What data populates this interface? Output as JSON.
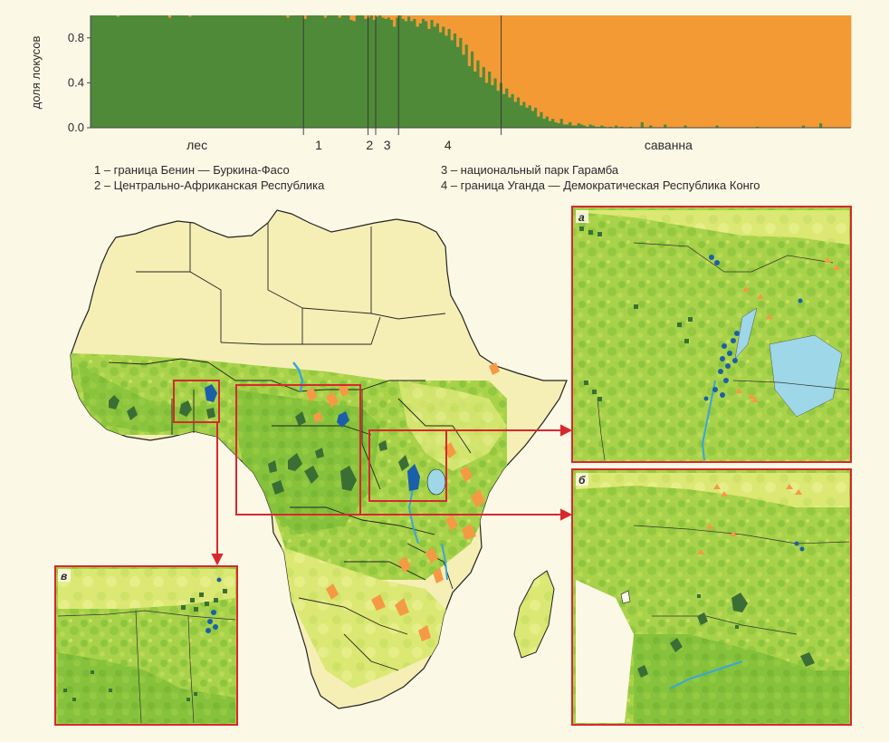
{
  "colors": {
    "forest": "#4f8a39",
    "savanna": "#f39a34",
    "background": "#fbf8e6",
    "land_light": "#f6efb5",
    "vegetation_light": "#d9e872",
    "vegetation_dense": "#8cc63e",
    "water": "#9ed7e8",
    "river": "#3aa6d8",
    "highlight_frame": "#d7282f",
    "marker_blue": "#1a5fa8",
    "marker_dark_green": "#3b6e35",
    "marker_orange": "#f49a45"
  },
  "chart_data": {
    "type": "bar",
    "subtype": "stacked admixture (STRUCTURE) plot",
    "ylabel": "доля локусов",
    "ylim": [
      0,
      1
    ],
    "yticks": [
      "0.0",
      "0.4",
      "0.8"
    ],
    "series": [
      {
        "name": "лес"
      },
      {
        "name": "саванна"
      }
    ],
    "values": [
      1,
      1,
      1,
      1,
      1,
      1,
      1,
      1,
      1,
      0.99,
      1,
      1,
      1,
      1,
      1,
      1,
      1,
      1,
      1,
      1,
      1,
      1,
      1,
      1,
      1,
      1,
      1,
      0.98,
      1,
      1,
      1,
      1,
      1,
      1,
      0.99,
      1,
      1,
      1,
      1,
      1,
      1,
      1,
      1,
      1,
      1,
      1,
      1,
      1,
      1,
      1,
      1,
      1,
      1,
      1,
      1,
      1,
      1,
      1,
      1,
      1,
      1,
      1,
      1,
      1,
      1,
      1,
      1,
      1,
      0.98,
      1,
      1,
      1,
      1,
      1,
      0.97,
      1,
      1,
      1,
      1,
      1,
      1,
      0.98,
      1,
      1,
      1,
      1,
      0.98,
      1,
      1,
      1,
      0.96,
      0.95,
      1,
      1,
      1,
      0.97,
      0.98,
      1,
      0.96,
      0.99,
      1,
      0.98,
      0.97,
      0.98,
      0.96,
      0.9,
      0.98,
      1,
      0.97,
      0.95,
      0.99,
      0.95,
      0.97,
      0.9,
      0.93,
      0.97,
      0.95,
      0.88,
      0.96,
      0.9,
      0.93,
      0.85,
      0.9,
      0.82,
      0.88,
      0.78,
      0.84,
      0.72,
      0.8,
      0.65,
      0.74,
      0.55,
      0.68,
      0.5,
      0.6,
      0.45,
      0.54,
      0.4,
      0.5,
      0.38,
      0.44,
      0.33,
      0.4,
      0.3,
      0.35,
      0.27,
      0.3,
      0.23,
      0.27,
      0.2,
      0.23,
      0.18,
      0.2,
      0.15,
      0.18,
      0.1,
      0.14,
      0.08,
      0.1,
      0.06,
      0.08,
      0.05,
      0.04,
      0.08,
      0.03,
      0.03,
      0.05,
      0.02,
      0.02,
      0.04,
      0.03,
      0.02,
      0.01,
      0.03,
      0.02,
      0.01,
      0.01,
      0.02,
      0.01,
      0,
      0.01,
      0,
      0.02,
      0,
      0.01,
      0,
      0,
      0.01,
      0,
      0,
      0,
      0.05,
      0,
      0,
      0.02,
      0,
      0,
      0,
      0,
      0.03,
      0,
      0,
      0,
      0,
      0,
      0,
      0.02,
      0,
      0,
      0,
      0,
      0,
      0,
      0,
      0,
      0,
      0,
      0.02,
      0,
      0,
      0,
      0,
      0,
      0,
      0,
      0,
      0,
      0,
      0,
      0,
      0,
      0.01,
      0,
      0,
      0,
      0,
      0,
      0,
      0,
      0,
      0,
      0,
      0,
      0,
      0,
      0,
      0,
      0.02,
      0,
      0,
      0,
      0,
      0,
      0.04,
      0,
      0,
      0,
      0,
      0,
      0,
      0,
      0,
      0,
      0
    ],
    "separator_fractions": [
      0.28,
      0.365,
      0.375,
      0.405,
      0.54
    ],
    "annotations": {
      "group_labels": [
        "лес",
        "1",
        "2",
        "3",
        "4",
        "саванна"
      ],
      "legend": [
        "1 – граница Бенин — Буркина-Фасо",
        "2 – Центрально-Африканская Республика",
        "3 – национальный парк Гарамба",
        "4 – граница Уганда — Демократическая Республика Конго"
      ]
    }
  },
  "map": {
    "insets": [
      {
        "label": "а"
      },
      {
        "label": "б"
      },
      {
        "label": "в"
      }
    ]
  }
}
